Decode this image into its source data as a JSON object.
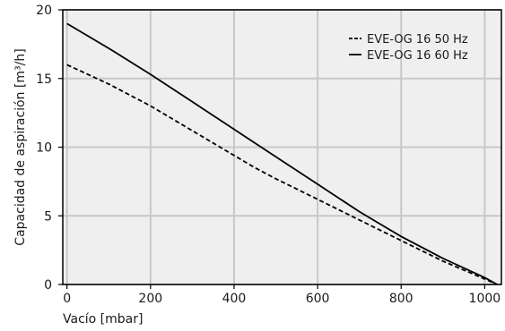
{
  "chart_data": {
    "type": "line",
    "xlabel": "Vacío [mbar]",
    "ylabel": "Capacidad de aspiración [m³/h]",
    "xlim": [
      -10,
      1040
    ],
    "ylim": [
      0,
      20
    ],
    "xticks": [
      0,
      200,
      400,
      600,
      800,
      1000
    ],
    "yticks": [
      0,
      5,
      10,
      15,
      20
    ],
    "grid": true,
    "plot_background": "#efefef",
    "grid_color": "#c8c8c8",
    "legend_position": "top-right",
    "series": [
      {
        "name": "EVE-OG 16 50 Hz",
        "style": "dashed",
        "color": "#000000",
        "x": [
          0,
          100,
          200,
          300,
          400,
          450,
          500,
          600,
          700,
          800,
          900,
          1000,
          1030
        ],
        "y": [
          16.0,
          14.6,
          13.0,
          11.2,
          9.4,
          8.5,
          7.7,
          6.2,
          4.7,
          3.2,
          1.7,
          0.4,
          0.0
        ]
      },
      {
        "name": "EVE-OG 16 60 Hz",
        "style": "solid",
        "color": "#000000",
        "x": [
          0,
          100,
          200,
          300,
          400,
          500,
          600,
          700,
          750,
          800,
          900,
          1000,
          1030
        ],
        "y": [
          19.0,
          17.2,
          15.3,
          13.3,
          11.3,
          9.3,
          7.3,
          5.3,
          4.4,
          3.5,
          1.9,
          0.5,
          0.0
        ]
      }
    ]
  }
}
